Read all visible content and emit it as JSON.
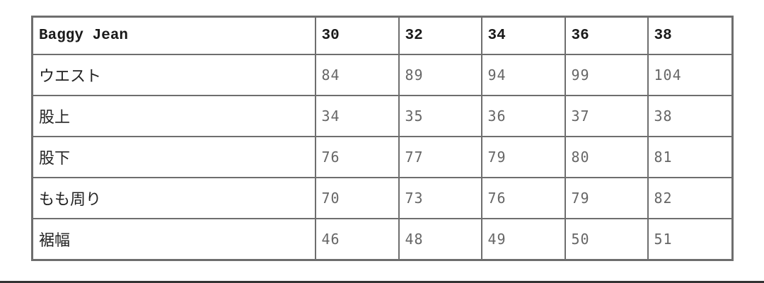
{
  "table": {
    "header": [
      "Baggy Jean",
      "30",
      "32",
      "34",
      "36",
      "38"
    ],
    "rows": [
      {
        "label": "ウエスト",
        "values": [
          "84",
          "89",
          "94",
          "99",
          "104"
        ]
      },
      {
        "label": "股上",
        "values": [
          "34",
          "35",
          "36",
          "37",
          "38"
        ]
      },
      {
        "label": "股下",
        "values": [
          "76",
          "77",
          "79",
          "80",
          "81"
        ]
      },
      {
        "label": "もも周り",
        "values": [
          "70",
          "73",
          "76",
          "79",
          "82"
        ]
      },
      {
        "label": "裾幅",
        "values": [
          "46",
          "48",
          "49",
          "50",
          "51"
        ]
      }
    ]
  },
  "colors": {
    "border": "#6e6e6e",
    "value_text": "#666666"
  }
}
